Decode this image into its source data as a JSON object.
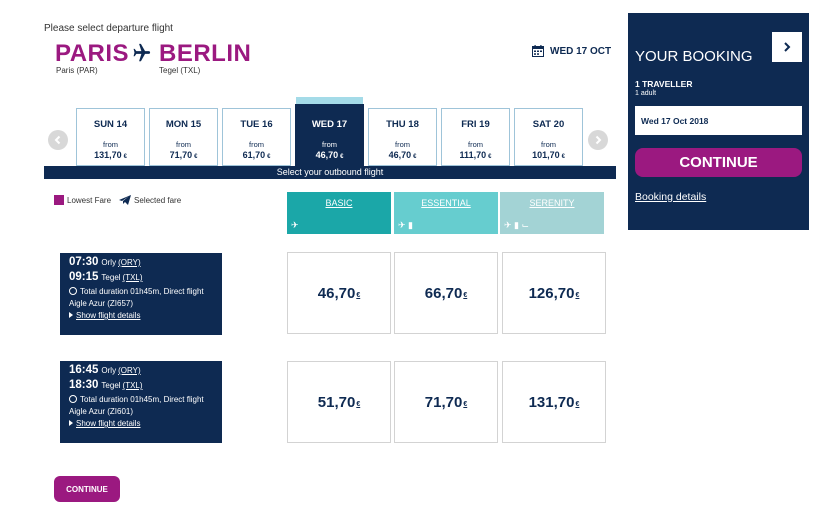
{
  "header": {
    "prompt": "Please select departure flight",
    "origin_city": "PARIS",
    "origin_airport": "Paris (PAR)",
    "destination_city": "BERLIN",
    "destination_airport": "Tegel (TXL)",
    "selected_date": "WED 17 OCT"
  },
  "calendar": {
    "days": [
      {
        "name": "SUN 14",
        "from": "from",
        "price": "131,70",
        "currency": "€"
      },
      {
        "name": "MON 15",
        "from": "from",
        "price": "71,70",
        "currency": "€"
      },
      {
        "name": "TUE 16",
        "from": "from",
        "price": "61,70",
        "currency": "€"
      },
      {
        "name": "WED 17",
        "from": "from",
        "price": "46,70",
        "currency": "€",
        "selected": true
      },
      {
        "name": "THU 18",
        "from": "from",
        "price": "46,70",
        "currency": "€"
      },
      {
        "name": "FRI 19",
        "from": "from",
        "price": "111,70",
        "currency": "€"
      },
      {
        "name": "SAT 20",
        "from": "from",
        "price": "101,70",
        "currency": "€"
      }
    ],
    "outbound_label": "Select your outbound flight"
  },
  "legend": {
    "lowest_fare": "Lowest Fare",
    "selected_fare": "Selected fare"
  },
  "fares": {
    "basic": "BASIC",
    "essential": "ESSENTIAL",
    "serenity": "SERENITY"
  },
  "flights": [
    {
      "dep_time": "07:30",
      "dep_airport": "Orly",
      "dep_code": "(ORY)",
      "arr_time": "09:15",
      "arr_airport": "Tegel",
      "arr_code": "(TXL)",
      "duration": "Total duration 01h45m, Direct flight",
      "carrier": "Aigle Azur (ZI657)",
      "details": "Show flight details",
      "prices": {
        "basic": "46,70",
        "essential": "66,70",
        "serenity": "126,70"
      },
      "currency": "€"
    },
    {
      "dep_time": "16:45",
      "dep_airport": "Orly",
      "dep_code": "(ORY)",
      "arr_time": "18:30",
      "arr_airport": "Tegel",
      "arr_code": "(TXL)",
      "duration": "Total duration 01h45m, Direct flight",
      "carrier": "Aigle Azur (ZI601)",
      "details": "Show flight details",
      "prices": {
        "basic": "51,70",
        "essential": "71,70",
        "serenity": "131,70"
      },
      "currency": "€"
    }
  ],
  "bottom": {
    "continue_label": "CONTINUE"
  },
  "booking": {
    "title": "YOUR BOOKING",
    "travellers": "1 TRAVELLER",
    "adults": "1 adult",
    "date": "Wed 17 Oct 2018",
    "continue_label": "CONTINUE",
    "details_link": "Booking details"
  },
  "colors": {
    "navy": "#0e2a52",
    "magenta": "#9b1980",
    "basic": "#1ba7a8",
    "essential": "#66cdcf",
    "serenity": "#a3d3d5"
  },
  "icons": [
    "airplane-icon",
    "calendar-icon",
    "chevron-left-icon",
    "chevron-right-icon",
    "clock-icon",
    "triangle-right-icon",
    "suitcase-icon",
    "seat-icon"
  ]
}
